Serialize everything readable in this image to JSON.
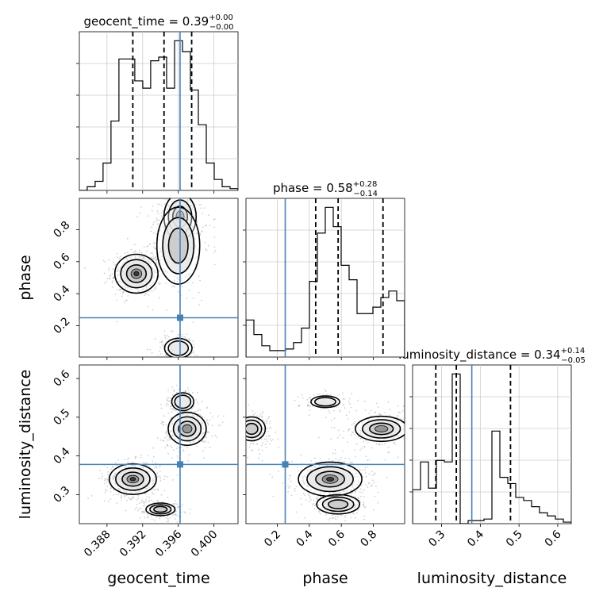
{
  "chart_data": {
    "type": "corner",
    "parameters": [
      "geocent_time",
      "phase",
      "luminosity_distance"
    ],
    "titles": {
      "geocent_time": {
        "name": "geocent_time",
        "median": "0.39",
        "plus": "+0.00",
        "minus": "−0.00"
      },
      "phase": {
        "name": "phase",
        "median": "0.58",
        "plus": "+0.28",
        "minus": "−0.14"
      },
      "luminosity_distance": {
        "name": "luminosity_distance",
        "median": "0.34",
        "plus": "+0.14",
        "minus": "−0.05"
      }
    },
    "truths": {
      "geocent_time": 0.3962,
      "phase": 0.25,
      "luminosity_distance": 0.378
    },
    "ranges": {
      "geocent_time": [
        0.3849,
        0.4027
      ],
      "phase": [
        0.005,
        0.995
      ],
      "luminosity_distance": [
        0.225,
        0.635
      ]
    },
    "ticks": {
      "geocent_time": {
        "values": [
          0.388,
          0.392,
          0.396,
          0.4
        ],
        "labels": [
          "0.388",
          "0.392",
          "0.396",
          "0.400"
        ]
      },
      "phase": {
        "values": [
          0.2,
          0.4,
          0.6,
          0.8
        ],
        "labels": [
          "0.2",
          "0.4",
          "0.6",
          "0.8"
        ]
      },
      "luminosity_distance": {
        "values": [
          0.3,
          0.4,
          0.5,
          0.6
        ],
        "labels": [
          "0.3",
          "0.4",
          "0.5",
          "0.6"
        ]
      }
    },
    "marginals": {
      "geocent_time": {
        "bin_edges": [
          0.3849,
          0.38578,
          0.38667,
          0.38756,
          0.38845,
          0.38934,
          0.39023,
          0.39112,
          0.39201,
          0.3929,
          0.3938,
          0.39469,
          0.39558,
          0.39647,
          0.39736,
          0.39825,
          0.39914,
          0.40003,
          0.40092,
          0.40181,
          0.4027
        ],
        "values": [
          0.0,
          0.02,
          0.05,
          0.15,
          0.38,
          0.72,
          0.72,
          0.6,
          0.56,
          0.71,
          0.73,
          0.56,
          0.82,
          0.76,
          0.55,
          0.36,
          0.15,
          0.06,
          0.02,
          0.01
        ],
        "quantiles": [
          0.3909,
          0.3944,
          0.3975
        ]
      },
      "phase": {
        "bin_edges": [
          0.005,
          0.0545,
          0.104,
          0.1535,
          0.203,
          0.2525,
          0.302,
          0.3515,
          0.401,
          0.4505,
          0.5,
          0.5495,
          0.599,
          0.6485,
          0.698,
          0.7475,
          0.797,
          0.8465,
          0.896,
          0.9455,
          0.995
        ],
        "values": [
          0.23,
          0.14,
          0.07,
          0.04,
          0.04,
          0.05,
          0.09,
          0.18,
          0.47,
          0.77,
          0.93,
          0.81,
          0.57,
          0.48,
          0.27,
          0.27,
          0.31,
          0.37,
          0.41,
          0.35
        ],
        "quantiles": [
          0.44,
          0.58,
          0.86
        ]
      },
      "luminosity_distance": {
        "bin_edges": [
          0.225,
          0.2455,
          0.266,
          0.2865,
          0.307,
          0.3275,
          0.348,
          0.3685,
          0.389,
          0.4095,
          0.43,
          0.4505,
          0.471,
          0.4915,
          0.512,
          0.5325,
          0.553,
          0.5735,
          0.594,
          0.6145,
          0.635
        ],
        "values": [
          0.22,
          0.4,
          0.23,
          0.41,
          0.4,
          0.97,
          0.0,
          0.02,
          0.02,
          0.03,
          0.6,
          0.3,
          0.26,
          0.17,
          0.15,
          0.11,
          0.07,
          0.05,
          0.03,
          0.01
        ],
        "quantiles": [
          0.285,
          0.338,
          0.478
        ]
      }
    },
    "joint_clusters": {
      "phase_vs_geocent_time": [
        {
          "x": 0.3913,
          "y": 0.525,
          "sx": 0.0011,
          "sy": 0.055,
          "w": 1.0
        },
        {
          "x": 0.3962,
          "y": 0.88,
          "sx": 0.001,
          "sy": 0.08,
          "w": 0.55
        },
        {
          "x": 0.396,
          "y": 0.7,
          "sx": 0.0014,
          "sy": 0.14,
          "w": 0.45
        },
        {
          "x": 0.396,
          "y": 0.06,
          "sx": 0.001,
          "sy": 0.04,
          "w": 0.25
        }
      ],
      "luminosity_distance_vs_geocent_time": [
        {
          "x": 0.3909,
          "y": 0.34,
          "sx": 0.0012,
          "sy": 0.018,
          "w": 1.0
        },
        {
          "x": 0.394,
          "y": 0.262,
          "sx": 0.001,
          "sy": 0.01,
          "w": 0.35
        },
        {
          "x": 0.397,
          "y": 0.47,
          "sx": 0.0011,
          "sy": 0.022,
          "w": 0.7
        },
        {
          "x": 0.3965,
          "y": 0.54,
          "sx": 0.0008,
          "sy": 0.015,
          "w": 0.25
        }
      ],
      "luminosity_distance_vs_phase": [
        {
          "x": 0.53,
          "y": 0.34,
          "sx": 0.09,
          "sy": 0.02,
          "w": 1.0
        },
        {
          "x": 0.58,
          "y": 0.275,
          "sx": 0.08,
          "sy": 0.015,
          "w": 0.4
        },
        {
          "x": 0.85,
          "y": 0.47,
          "sx": 0.09,
          "sy": 0.018,
          "w": 0.55
        },
        {
          "x": 0.04,
          "y": 0.47,
          "sx": 0.05,
          "sy": 0.018,
          "w": 0.45
        },
        {
          "x": 0.5,
          "y": 0.54,
          "sx": 0.06,
          "sy": 0.01,
          "w": 0.2
        }
      ]
    },
    "colors": {
      "truth": "#4682b4",
      "histogram": "#000000",
      "quantile": "#000000",
      "grid": "#cccccc",
      "points": "#aaaaaa"
    },
    "grid": true
  }
}
